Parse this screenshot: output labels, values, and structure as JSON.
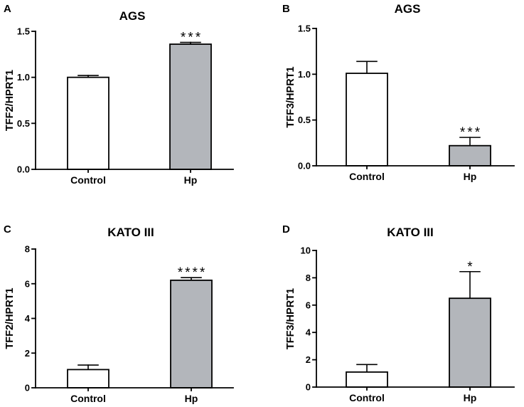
{
  "colors": {
    "control_fill": "#ffffff",
    "hp_fill": "#b3b6bb",
    "line": "#000000",
    "text": "#000000"
  },
  "chart_data": [
    {
      "panel_label": "A",
      "type": "bar",
      "title": "AGS",
      "ylabel": "TFF2/HPRT1",
      "categories": [
        "Control",
        "Hp"
      ],
      "values": [
        1.0,
        1.36
      ],
      "errors": [
        0.02,
        0.02
      ],
      "annotations": [
        {
          "category_index": 1,
          "text": "***"
        }
      ],
      "yticks": [
        "0.0",
        "0.5",
        "1.0",
        "1.5"
      ],
      "ylim": [
        0,
        1.5
      ]
    },
    {
      "panel_label": "B",
      "type": "bar",
      "title": "AGS",
      "ylabel": "TFF3/HPRT1",
      "categories": [
        "Control",
        "Hp"
      ],
      "values": [
        1.01,
        0.22
      ],
      "errors": [
        0.13,
        0.09
      ],
      "annotations": [
        {
          "category_index": 1,
          "text": "***"
        }
      ],
      "yticks": [
        "0.0",
        "0.5",
        "1.0",
        "1.5"
      ],
      "ylim": [
        0,
        1.5
      ]
    },
    {
      "panel_label": "C",
      "type": "bar",
      "title": "KATO III",
      "ylabel": "TFF2/HPRT1",
      "categories": [
        "Control",
        "Hp"
      ],
      "values": [
        1.05,
        6.2
      ],
      "errors": [
        0.26,
        0.15
      ],
      "annotations": [
        {
          "category_index": 1,
          "text": "****"
        }
      ],
      "yticks": [
        "0",
        "2",
        "4",
        "6",
        "8"
      ],
      "ylim": [
        0,
        8
      ]
    },
    {
      "panel_label": "D",
      "type": "bar",
      "title": "KATO III",
      "ylabel": "TFF3/HPRT1",
      "categories": [
        "Control",
        "Hp"
      ],
      "values": [
        1.1,
        6.5
      ],
      "errors": [
        0.55,
        1.95
      ],
      "annotations": [
        {
          "category_index": 1,
          "text": "*"
        }
      ],
      "yticks": [
        "0",
        "2",
        "4",
        "6",
        "8",
        "10"
      ],
      "ylim": [
        0,
        10
      ]
    }
  ]
}
